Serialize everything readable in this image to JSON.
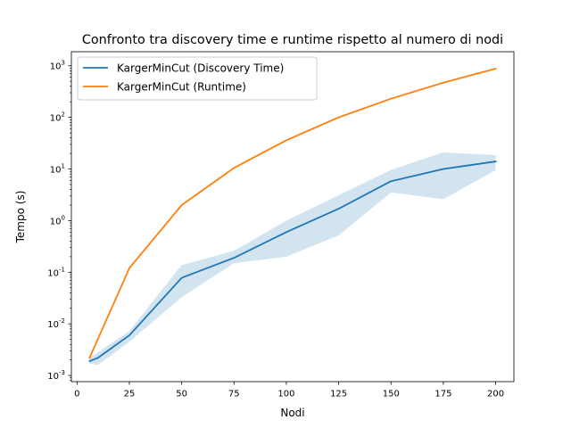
{
  "chart_data": {
    "type": "line",
    "title": "Confronto tra discovery time e runtime rispetto al numero di nodi",
    "xlabel": "Nodi",
    "ylabel": "Tempo (s)",
    "xlim": [
      -2.7,
      208.7
    ],
    "ylim": [
      0.00076,
      1870
    ],
    "yscale": "log",
    "grid": false,
    "legend_position": "upper-left",
    "x_ticks": [
      0,
      25,
      50,
      75,
      100,
      125,
      150,
      175,
      200
    ],
    "x_tick_labels": [
      "0",
      "25",
      "50",
      "75",
      "100",
      "125",
      "150",
      "175",
      "200"
    ],
    "y_ticks": [
      0.001,
      0.01,
      0.1,
      1,
      10,
      100,
      1000
    ],
    "y_tick_exponents": [
      "-3",
      "-2",
      "-1",
      "0",
      "1",
      "2",
      "3"
    ],
    "y_tick_base": "10",
    "series": [
      {
        "name": "KargerMinCut (Discovery Time)",
        "color": "#1f77b4",
        "x": [
          6,
          10,
          25,
          50,
          75,
          100,
          125,
          150,
          175,
          200
        ],
        "y": [
          0.0019,
          0.0022,
          0.006,
          0.078,
          0.19,
          0.6,
          1.7,
          5.8,
          10,
          14
        ],
        "band_lower": [
          0.0017,
          0.0016,
          0.0045,
          0.033,
          0.15,
          0.2,
          0.52,
          3.5,
          2.6,
          9.5
        ],
        "band_upper": [
          0.0022,
          0.0028,
          0.0073,
          0.138,
          0.26,
          1.0,
          3.1,
          9.6,
          21,
          18.5
        ],
        "band_color": "#1f77b4",
        "band_opacity": 0.2
      },
      {
        "name": "KargerMinCut (Runtime)",
        "color": "#ff7f0e",
        "x": [
          6,
          25,
          50,
          75,
          100,
          125,
          150,
          175,
          200
        ],
        "y": [
          0.0022,
          0.12,
          2.0,
          10.5,
          36,
          100,
          230,
          470,
          880
        ]
      }
    ]
  }
}
